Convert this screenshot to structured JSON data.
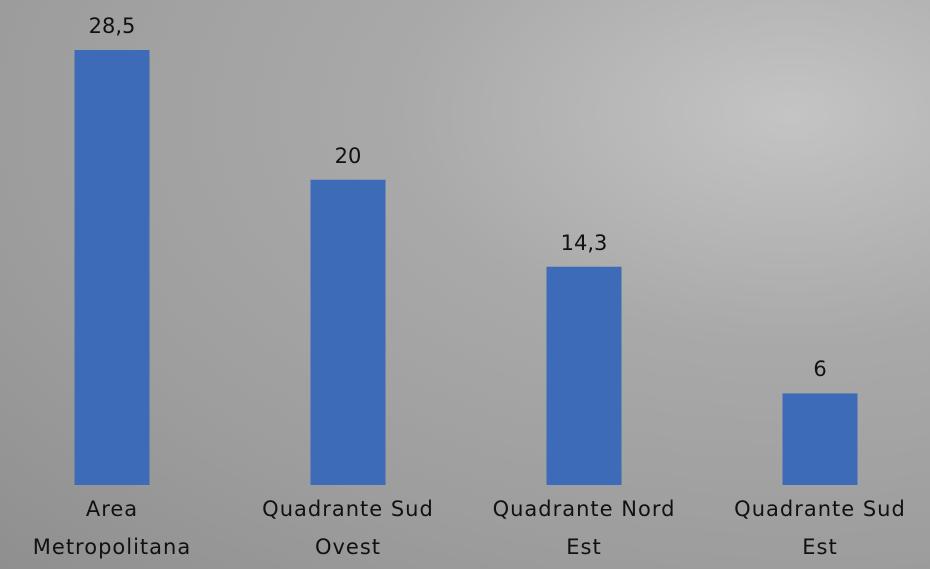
{
  "chart_data": {
    "type": "bar",
    "categories": [
      "Area Metropolitana",
      "Quadrante Sud Ovest",
      "Quadrante Nord Est",
      "Quadrante Sud Est"
    ],
    "values": [
      28.5,
      20,
      14.3,
      6
    ],
    "value_labels": [
      "28,5",
      "20",
      "14,3",
      "6"
    ],
    "color": "#3d6bb7"
  }
}
